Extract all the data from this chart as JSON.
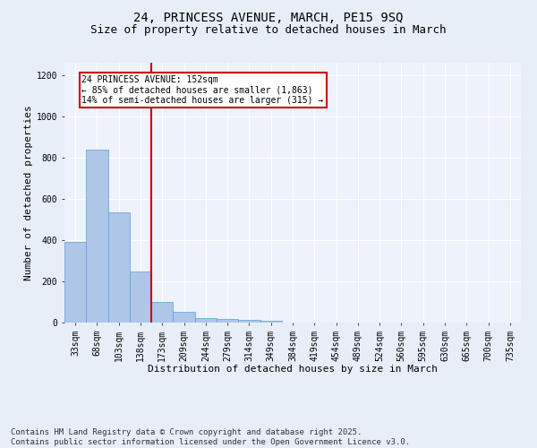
{
  "title_line1": "24, PRINCESS AVENUE, MARCH, PE15 9SQ",
  "title_line2": "Size of property relative to detached houses in March",
  "xlabel": "Distribution of detached houses by size in March",
  "ylabel": "Number of detached properties",
  "categories": [
    "33sqm",
    "68sqm",
    "103sqm",
    "138sqm",
    "173sqm",
    "209sqm",
    "244sqm",
    "279sqm",
    "314sqm",
    "349sqm",
    "384sqm",
    "419sqm",
    "454sqm",
    "489sqm",
    "524sqm",
    "560sqm",
    "595sqm",
    "630sqm",
    "665sqm",
    "700sqm",
    "735sqm"
  ],
  "values": [
    390,
    840,
    535,
    248,
    100,
    52,
    22,
    16,
    12,
    8,
    0,
    0,
    0,
    0,
    0,
    0,
    0,
    0,
    0,
    0,
    0
  ],
  "bar_color": "#aec6e8",
  "bar_edge_color": "#5a9fd4",
  "vline_x_index": 3.5,
  "vline_color": "#cc0000",
  "box_text_line1": "24 PRINCESS AVENUE: 152sqm",
  "box_text_line2": "← 85% of detached houses are smaller (1,863)",
  "box_text_line3": "14% of semi-detached houses are larger (315) →",
  "box_color": "#cc0000",
  "box_bg": "#ffffff",
  "ylim": [
    0,
    1260
  ],
  "yticks": [
    0,
    200,
    400,
    600,
    800,
    1000,
    1200
  ],
  "footnote_line1": "Contains HM Land Registry data © Crown copyright and database right 2025.",
  "footnote_line2": "Contains public sector information licensed under the Open Government Licence v3.0.",
  "bg_color": "#e8eef8",
  "plot_bg_color": "#eef2fb",
  "title_fontsize": 10,
  "subtitle_fontsize": 9,
  "axis_label_fontsize": 8,
  "tick_fontsize": 7,
  "footnote_fontsize": 6.5,
  "annotation_fontsize": 7
}
